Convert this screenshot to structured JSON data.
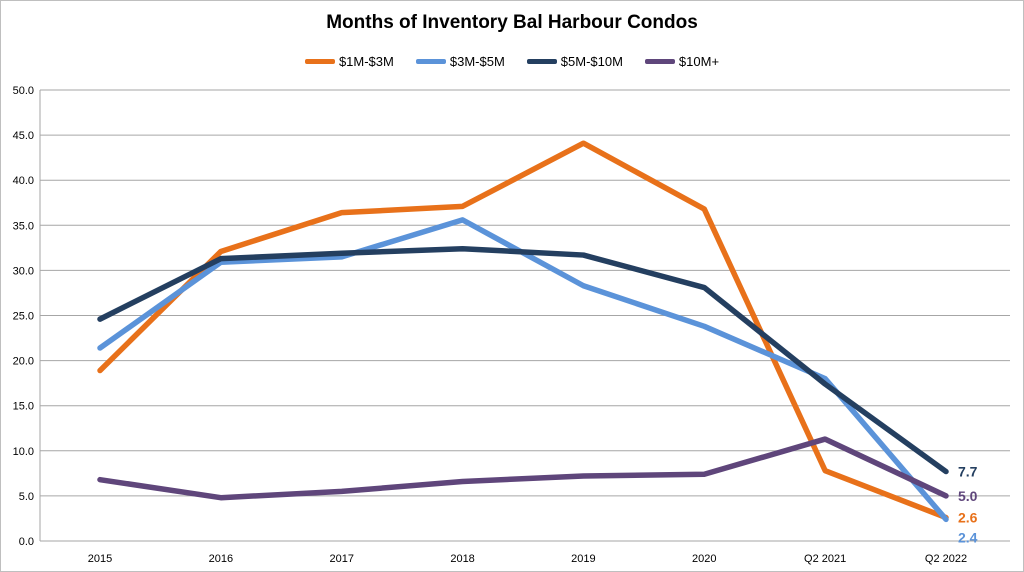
{
  "chart_data": {
    "type": "line",
    "title": "Months of Inventory Bal Harbour Condos",
    "xlabel": "",
    "ylabel": "",
    "categories": [
      "2015",
      "2016",
      "2017",
      "2018",
      "2019",
      "2020",
      "Q2 2021",
      "Q2 2022"
    ],
    "ylim": [
      0,
      50
    ],
    "yticks": [
      "0.0",
      "5.0",
      "10.0",
      "15.0",
      "20.0",
      "25.0",
      "30.0",
      "35.0",
      "40.0",
      "45.0",
      "50.0"
    ],
    "grid": true,
    "legend": "top",
    "series": [
      {
        "name": "$1M-$3M",
        "color": "#e8711a",
        "values": [
          18.9,
          32.1,
          36.4,
          37.1,
          44.1,
          36.8,
          7.8,
          2.6
        ],
        "end_label": "2.6"
      },
      {
        "name": "$3M-$5M",
        "color": "#5b93d9",
        "values": [
          21.4,
          30.9,
          31.5,
          35.6,
          28.3,
          23.8,
          18.0,
          2.4
        ],
        "end_label": "2.4"
      },
      {
        "name": "$5M-$10M",
        "color": "#243f60",
        "values": [
          24.6,
          31.3,
          31.9,
          32.4,
          31.7,
          28.1,
          17.4,
          7.7
        ],
        "end_label": "7.7"
      },
      {
        "name": "$10M+",
        "color": "#5f467b",
        "values": [
          6.8,
          4.8,
          5.5,
          6.6,
          7.2,
          7.4,
          11.3,
          5.0
        ],
        "end_label": "5.0"
      }
    ]
  }
}
